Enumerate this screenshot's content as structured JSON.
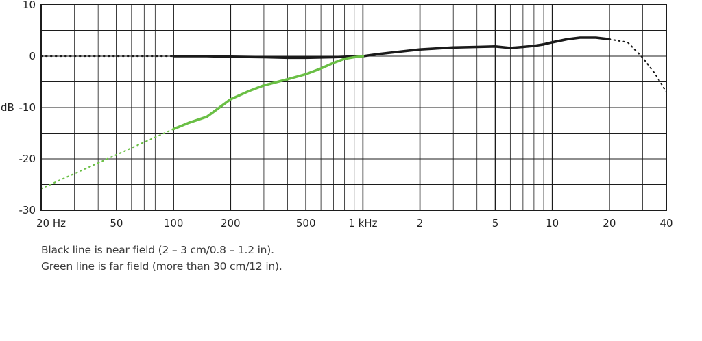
{
  "chart_data": {
    "type": "line",
    "x_scale": "log",
    "xlim": [
      20,
      40000
    ],
    "ylim": [
      -30,
      10
    ],
    "ylabel": "dB",
    "grid": true,
    "x_ticks": [
      {
        "value": 20,
        "label": "20 Hz"
      },
      {
        "value": 50,
        "label": "50"
      },
      {
        "value": 100,
        "label": "100"
      },
      {
        "value": 200,
        "label": "200"
      },
      {
        "value": 500,
        "label": "500"
      },
      {
        "value": 1000,
        "label": "1 kHz"
      },
      {
        "value": 2000,
        "label": "2"
      },
      {
        "value": 5000,
        "label": "5"
      },
      {
        "value": 10000,
        "label": "10"
      },
      {
        "value": 20000,
        "label": "20"
      },
      {
        "value": 40000,
        "label": "40"
      }
    ],
    "y_ticks": [
      {
        "value": 10,
        "label": "10"
      },
      {
        "value": 0,
        "label": "0"
      },
      {
        "value": -10,
        "label": "-10"
      },
      {
        "value": -20,
        "label": "-20"
      },
      {
        "value": -30,
        "label": "-30"
      }
    ],
    "series": [
      {
        "color": "#1a1a1a",
        "solid": [
          [
            100,
            0
          ],
          [
            150,
            0
          ],
          [
            200,
            -0.1
          ],
          [
            300,
            -0.2
          ],
          [
            400,
            -0.3
          ],
          [
            500,
            -0.3
          ],
          [
            700,
            -0.2
          ],
          [
            1000,
            0
          ],
          [
            1200,
            0.4
          ],
          [
            1500,
            0.8
          ],
          [
            2000,
            1.3
          ],
          [
            3000,
            1.7
          ],
          [
            4000,
            1.8
          ],
          [
            5000,
            1.9
          ],
          [
            6000,
            1.6
          ],
          [
            7000,
            1.8
          ],
          [
            8000,
            2
          ],
          [
            9000,
            2.3
          ],
          [
            10000,
            2.7
          ],
          [
            12000,
            3.3
          ],
          [
            14000,
            3.6
          ],
          [
            17000,
            3.6
          ],
          [
            20000,
            3.3
          ]
        ],
        "dotted_before": [
          [
            20,
            0
          ],
          [
            100,
            0
          ]
        ],
        "dotted_after": [
          [
            20000,
            3.3
          ],
          [
            25000,
            2.7
          ],
          [
            30000,
            -0.3
          ],
          [
            35000,
            -3.5
          ],
          [
            40000,
            -7
          ]
        ]
      },
      {
        "color": "#6abf45",
        "solid": [
          [
            100,
            -14.2
          ],
          [
            120,
            -13
          ],
          [
            150,
            -11.8
          ],
          [
            200,
            -8.4
          ],
          [
            250,
            -6.8
          ],
          [
            300,
            -5.7
          ],
          [
            400,
            -4.5
          ],
          [
            500,
            -3.5
          ],
          [
            600,
            -2.4
          ],
          [
            700,
            -1.3
          ],
          [
            800,
            -0.5
          ],
          [
            900,
            -0.2
          ],
          [
            1000,
            0
          ]
        ],
        "dotted_before": [
          [
            20,
            -25.8
          ],
          [
            100,
            -14.2
          ]
        ]
      }
    ]
  },
  "caption": {
    "line1": "Black line is near field (2 – 3 cm/0.8 – 1.2 in).",
    "line2": "Green line is far field (more than 30 cm/12 in)."
  }
}
